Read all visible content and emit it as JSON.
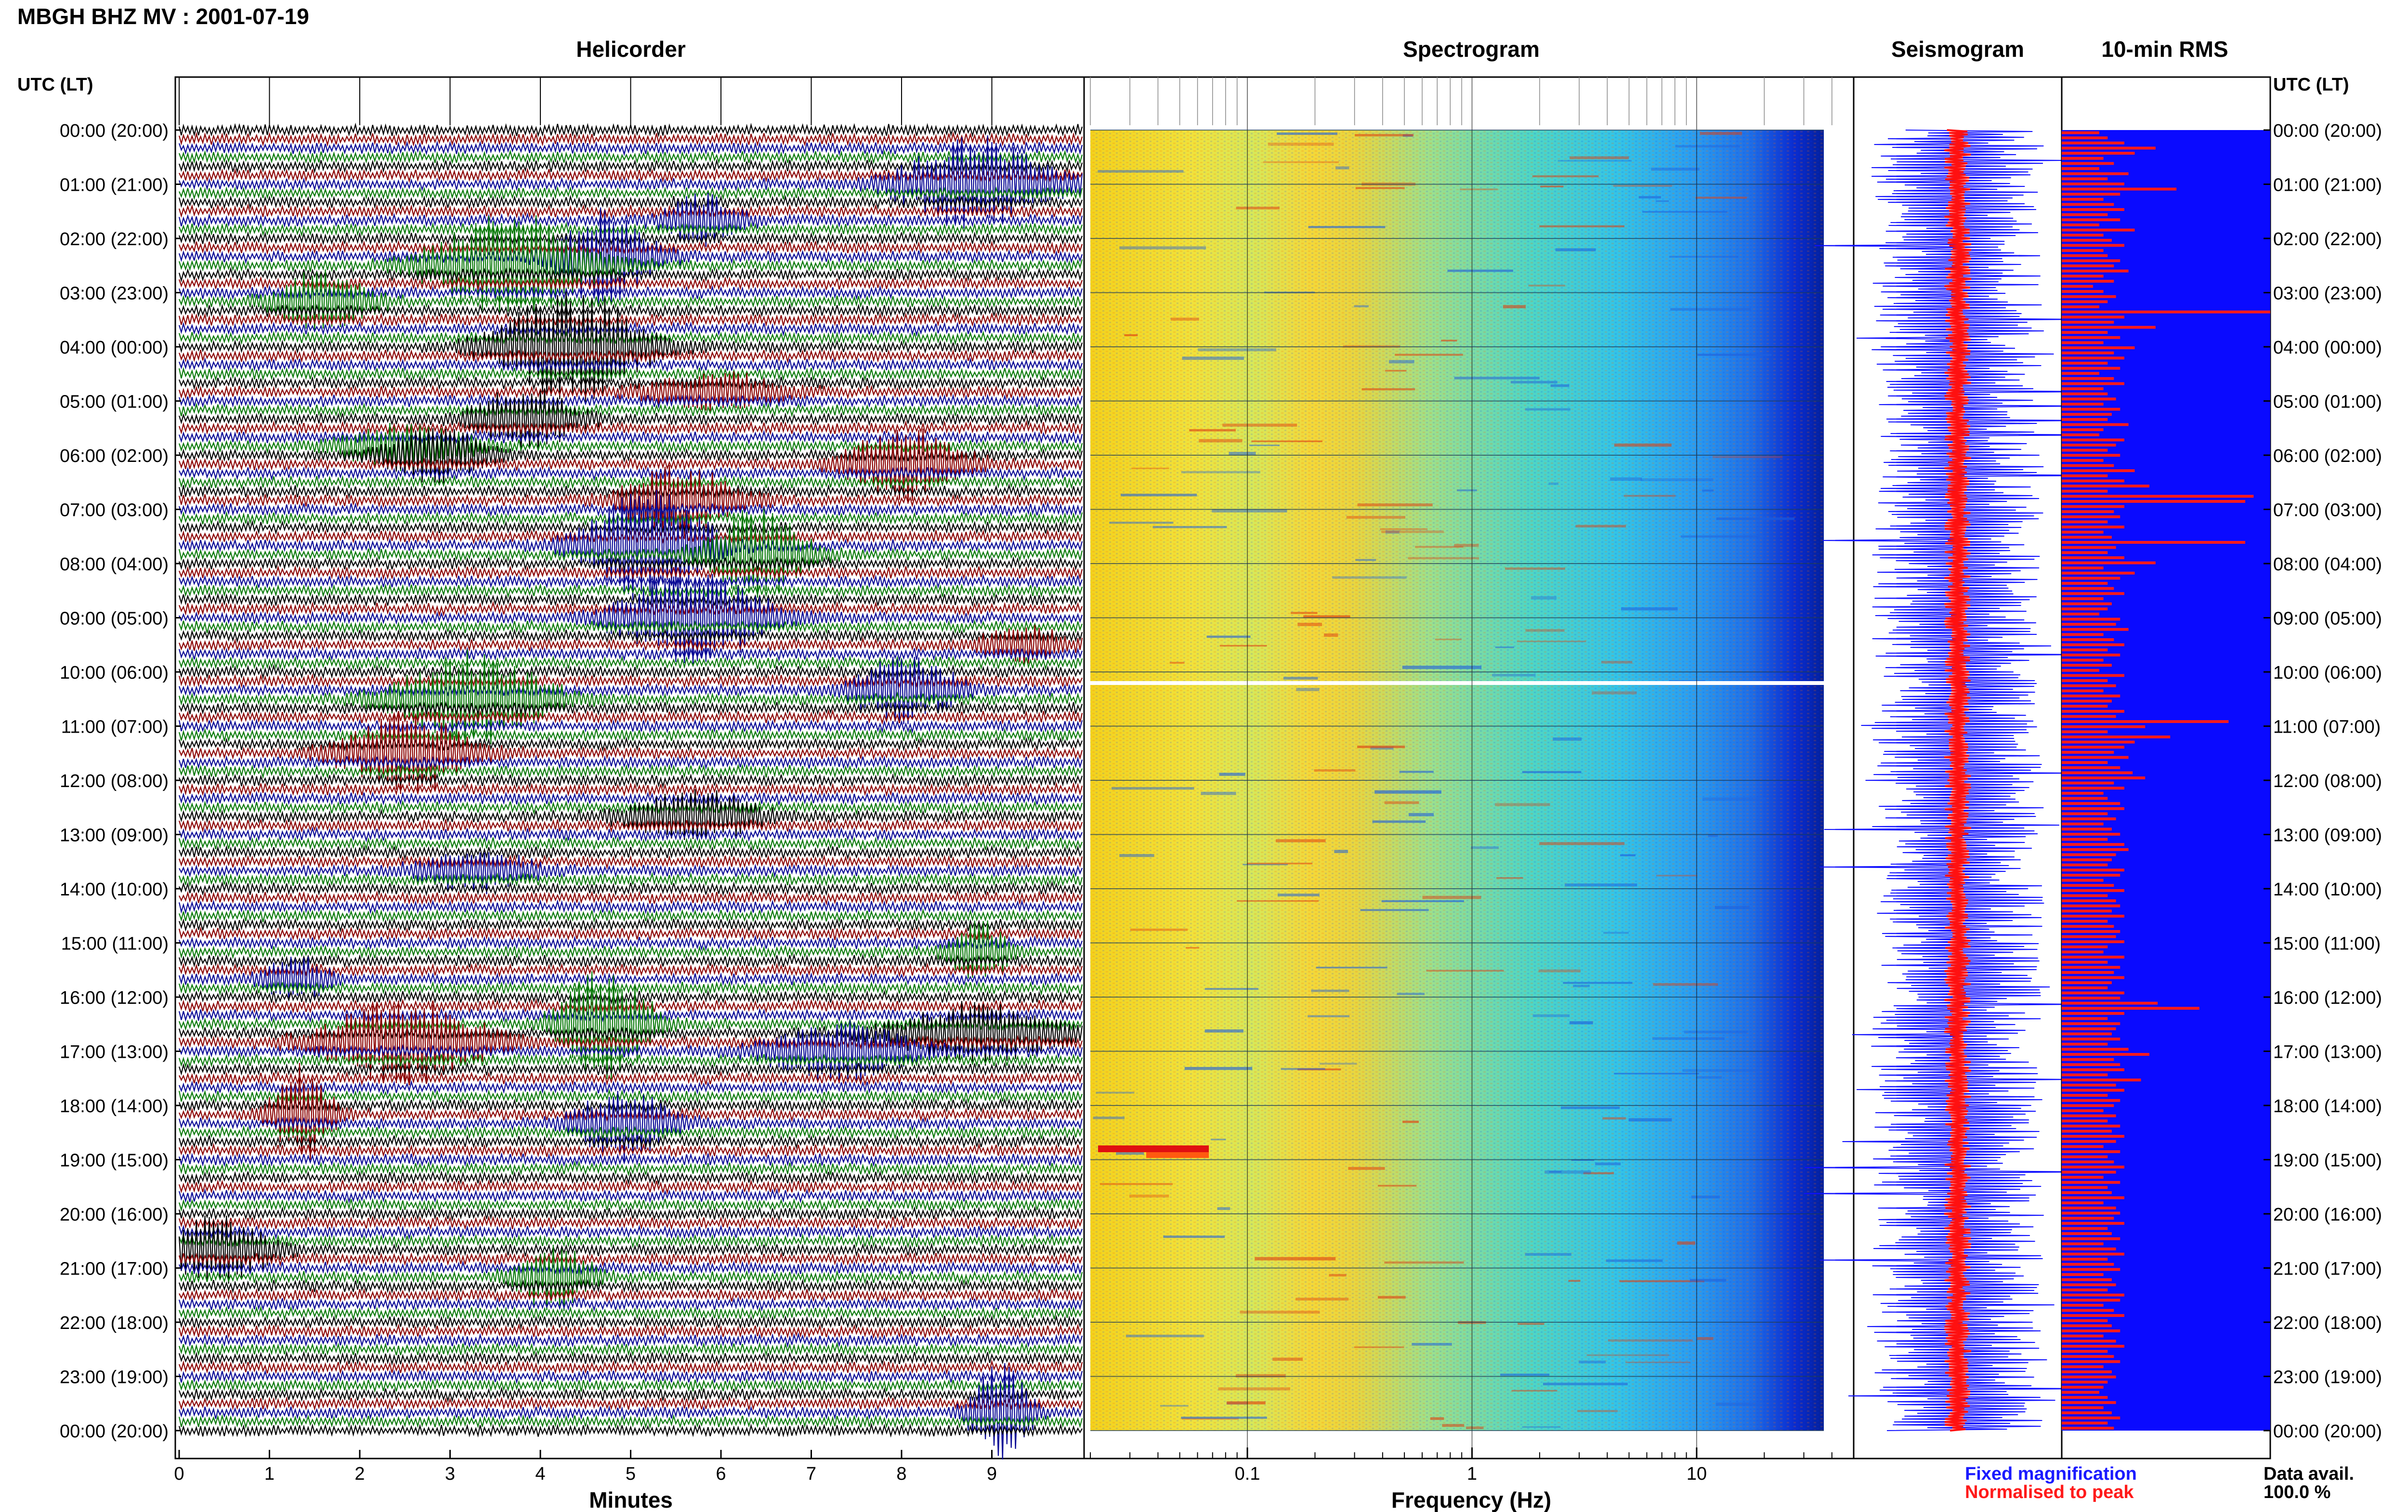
{
  "title": "MBGH BHZ MV : 2001-07-19",
  "time_axis_label": "UTC (LT)",
  "panels": {
    "helicorder": "Helicorder",
    "spectrogram": "Spectrogram",
    "seismogram": "Seismogram",
    "rms": "10-min RMS"
  },
  "colors": {
    "trace_black": "#000000",
    "trace_red": "#8b0000",
    "trace_blue": "#0a0a96",
    "trace_green": "#0a7a0a",
    "seismo_blue": "#1010ff",
    "seismo_red": "#ff1010",
    "rms_blue": "#0a0aff",
    "rms_red": "#ff1a1a"
  },
  "legend": {
    "fixed": "Fixed magnification",
    "normalised": "Normalised to peak",
    "fixed_color": "#1a1aff",
    "normalised_color": "#ff1a1a"
  },
  "data_avail": {
    "label": "Data avail.",
    "value": "100.0 %"
  },
  "chart_data": [
    {
      "type": "line",
      "panel": "helicorder",
      "xlabel": "Minutes",
      "x_ticks": [
        "0",
        "1",
        "2",
        "3",
        "4",
        "5",
        "6",
        "7",
        "8",
        "9"
      ],
      "xlim": [
        0,
        10
      ],
      "y_ticks": [
        "00:00 (20:00)",
        "01:00 (21:00)",
        "02:00 (22:00)",
        "03:00 (23:00)",
        "04:00 (00:00)",
        "05:00 (01:00)",
        "06:00 (02:00)",
        "07:00 (03:00)",
        "08:00 (04:00)",
        "09:00 (05:00)",
        "10:00 (06:00)",
        "11:00 (07:00)",
        "12:00 (08:00)",
        "13:00 (09:00)",
        "14:00 (10:00)",
        "15:00 (11:00)",
        "16:00 (12:00)",
        "17:00 (13:00)",
        "18:00 (14:00)",
        "19:00 (15:00)",
        "20:00 (16:00)",
        "21:00 (17:00)",
        "22:00 (18:00)",
        "23:00 (19:00)",
        "00:00 (20:00)"
      ],
      "rows_per_hour": 6,
      "row_minutes": 10
    },
    {
      "type": "heatmap",
      "panel": "spectrogram",
      "xlabel": "Frequency (Hz)",
      "x_scale": "log",
      "x_ticks": [
        "0.1",
        "1",
        "10"
      ],
      "xlim": [
        0.02,
        50
      ],
      "gap_at_utc": "10:10"
    },
    {
      "type": "line",
      "panel": "seismogram"
    },
    {
      "type": "bar",
      "panel": "rms",
      "interval_minutes": 10,
      "units": "relative",
      "values": [
        0.18,
        0.22,
        0.3,
        0.45,
        0.35,
        0.2,
        0.25,
        0.18,
        0.32,
        0.22,
        0.3,
        0.55,
        0.28,
        0.2,
        0.25,
        0.3,
        0.22,
        0.28,
        0.18,
        0.35,
        0.2,
        0.24,
        0.3,
        0.2,
        0.22,
        0.28,
        0.25,
        0.32,
        0.2,
        0.25,
        0.15,
        0.2,
        0.26,
        0.22,
        0.18,
        1.0,
        0.3,
        0.25,
        0.45,
        0.22,
        0.28,
        0.2,
        0.35,
        0.25,
        0.3,
        0.22,
        0.28,
        0.18,
        0.25,
        0.3,
        0.2,
        0.22,
        0.26,
        0.2,
        0.28,
        0.24,
        0.22,
        0.32,
        0.2,
        0.18,
        0.3,
        0.26,
        0.22,
        0.28,
        0.2,
        0.25,
        0.35,
        0.22,
        0.3,
        0.42,
        0.22,
        0.92,
        0.88,
        0.3,
        0.25,
        0.28,
        0.22,
        0.3,
        0.2,
        0.24,
        0.88,
        0.26,
        0.22,
        0.3,
        0.45,
        0.2,
        0.35,
        0.28,
        0.22,
        0.25,
        0.3,
        0.2,
        0.24,
        0.22,
        0.18,
        0.28,
        0.26,
        0.32,
        0.2,
        0.25,
        0.3,
        0.22,
        0.28,
        0.2,
        0.24,
        0.18,
        0.3,
        0.22,
        0.26,
        0.2,
        0.28,
        0.24,
        0.22,
        0.3,
        0.26,
        0.8,
        0.4,
        0.22,
        0.52,
        0.35,
        0.3,
        0.25,
        0.32,
        0.22,
        0.28,
        0.34,
        0.4,
        0.25,
        0.3,
        0.2,
        0.22,
        0.28,
        0.3,
        0.22,
        0.26,
        0.2,
        0.24,
        0.28,
        0.22,
        0.3,
        0.32,
        0.26,
        0.24,
        0.22,
        0.3,
        0.28,
        0.2,
        0.25,
        0.3,
        0.22,
        0.26,
        0.28,
        0.24,
        0.3,
        0.22,
        0.25,
        0.28,
        0.26,
        0.3,
        0.22,
        0.2,
        0.3,
        0.22,
        0.28,
        0.25,
        0.3,
        0.24,
        0.22,
        0.3,
        0.28,
        0.46,
        0.66,
        0.3,
        0.22,
        0.28,
        0.26,
        0.24,
        0.28,
        0.22,
        0.32,
        0.42,
        0.25,
        0.28,
        0.3,
        0.22,
        0.38,
        0.26,
        0.3,
        0.22,
        0.28,
        0.25,
        0.2,
        0.26,
        0.22,
        0.28,
        0.24,
        0.3,
        0.26,
        0.2,
        0.28,
        0.22,
        0.25,
        0.3,
        0.26,
        0.2,
        0.28,
        0.22,
        0.24,
        0.3,
        0.2,
        0.26,
        0.28,
        0.25,
        0.3,
        0.22,
        0.24,
        0.28,
        0.2,
        0.26,
        0.3,
        0.22,
        0.25,
        0.28,
        0.2,
        0.24,
        0.26,
        0.22,
        0.3,
        0.28,
        0.2,
        0.25,
        0.3,
        0.22,
        0.24,
        0.28,
        0.2,
        0.26,
        0.3,
        0.22,
        0.25,
        0.28,
        0.2,
        0.24,
        0.26,
        0.22,
        0.2,
        0.18,
        0.22,
        0.26,
        0.2,
        0.24,
        0.28,
        0.22,
        0.25
      ]
    }
  ]
}
